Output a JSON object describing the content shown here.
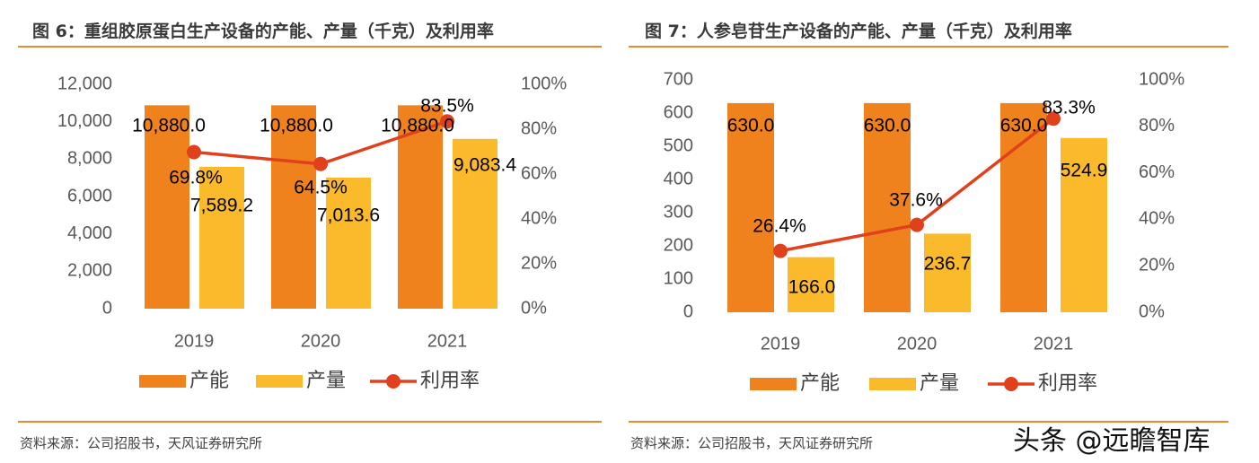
{
  "charts_meta": [
    {
      "title": "图 6：重组胶原蛋白生产设备的产能、产量（千克）及利用率",
      "source": "资料来源：公司招股书，天风证券研究所"
    },
    {
      "title": "图 7：人参皂苷生产设备的产能、产量（千克）及利用率",
      "source": "资料来源：公司招股书，天风证券研究所"
    }
  ],
  "watermark": "头条 @远瞻智库",
  "chart_data": [
    {
      "type": "bar+line",
      "title": "图 6：重组胶原蛋白生产设备的产能、产量（千克）及利用率",
      "categories": [
        "2019",
        "2020",
        "2021"
      ],
      "series": [
        {
          "name": "产能",
          "type": "bar",
          "axis": "left",
          "values": [
            10880.0,
            10880.0,
            10880.0
          ],
          "labels": [
            "10,880.0",
            "10,880.0",
            "10,880.0"
          ],
          "color": "#F0821E"
        },
        {
          "name": "产量",
          "type": "bar",
          "axis": "left",
          "values": [
            7589.2,
            7013.6,
            9083.4
          ],
          "labels": [
            "7,589.2",
            "7,013.6",
            "9,083.4"
          ],
          "color": "#FBBA2B"
        },
        {
          "name": "利用率",
          "type": "line",
          "axis": "right",
          "values": [
            69.8,
            64.5,
            83.5
          ],
          "labels": [
            "69.8%",
            "64.5%",
            "83.5%"
          ],
          "color": "#E0401C"
        }
      ],
      "y_left": {
        "range": [
          0,
          12000
        ],
        "ticks": [
          "0",
          "2,000",
          "4,000",
          "6,000",
          "8,000",
          "10,000",
          "12,000"
        ],
        "tick_values": [
          0,
          2000,
          4000,
          6000,
          8000,
          10000,
          12000
        ]
      },
      "y_right": {
        "range": [
          0,
          100
        ],
        "ticks": [
          "0%",
          "20%",
          "40%",
          "60%",
          "80%",
          "100%"
        ],
        "tick_values": [
          0,
          20,
          40,
          60,
          80,
          100
        ]
      },
      "grid": false,
      "legend": "bottom"
    },
    {
      "type": "bar+line",
      "title": "图 7：人参皂苷生产设备的产能、产量（千克）及利用率",
      "categories": [
        "2019",
        "2020",
        "2021"
      ],
      "series": [
        {
          "name": "产能",
          "type": "bar",
          "axis": "left",
          "values": [
            630.0,
            630.0,
            630.0
          ],
          "labels": [
            "630.0",
            "630.0",
            "630.0"
          ],
          "color": "#F0821E"
        },
        {
          "name": "产量",
          "type": "bar",
          "axis": "left",
          "values": [
            166.0,
            236.7,
            524.9
          ],
          "labels": [
            "166.0",
            "236.7",
            "524.9"
          ],
          "color": "#FBBA2B"
        },
        {
          "name": "利用率",
          "type": "line",
          "axis": "right",
          "values": [
            26.4,
            37.6,
            83.3
          ],
          "labels": [
            "26.4%",
            "37.6%",
            "83.3%"
          ],
          "color": "#E0401C"
        }
      ],
      "y_left": {
        "range": [
          0,
          700
        ],
        "ticks": [
          "0",
          "100",
          "200",
          "300",
          "400",
          "500",
          "600",
          "700"
        ],
        "tick_values": [
          0,
          100,
          200,
          300,
          400,
          500,
          600,
          700
        ]
      },
      "y_right": {
        "range": [
          0,
          100
        ],
        "ticks": [
          "0%",
          "20%",
          "40%",
          "60%",
          "80%",
          "100%"
        ],
        "tick_values": [
          0,
          20,
          40,
          60,
          80,
          100
        ]
      },
      "grid": false,
      "legend": "bottom"
    }
  ]
}
